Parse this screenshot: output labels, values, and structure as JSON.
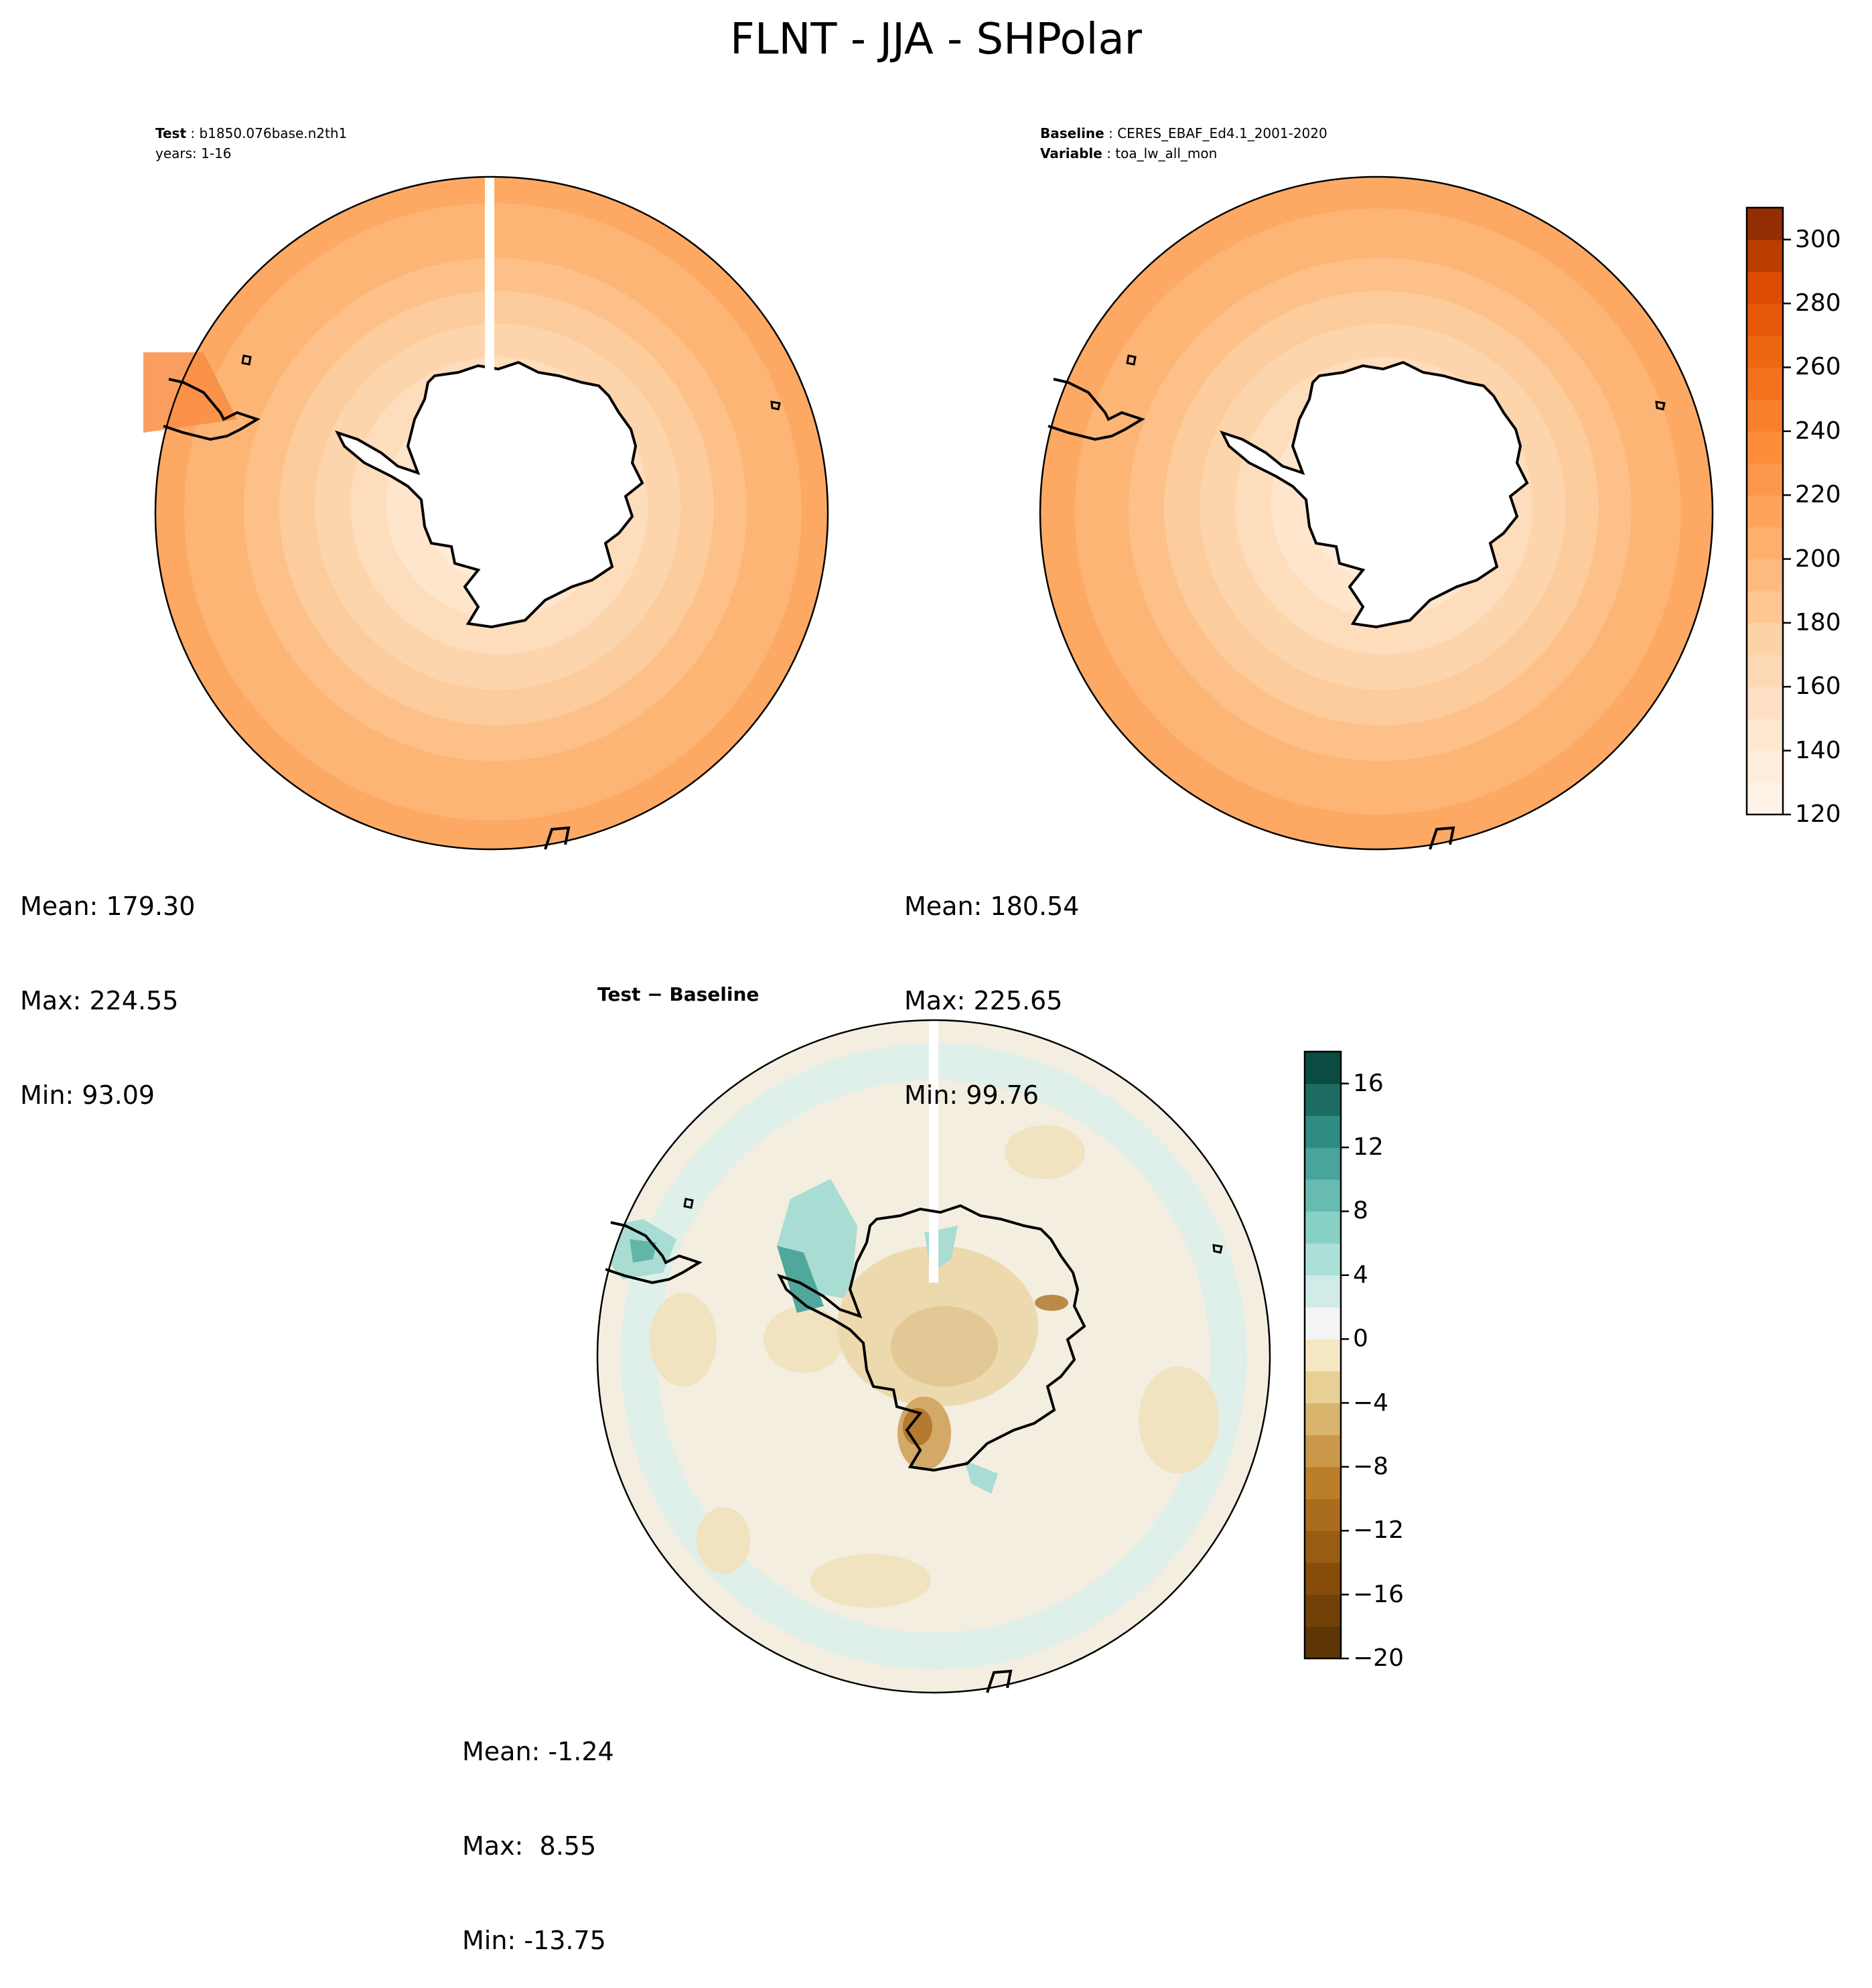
{
  "figure": {
    "title": "FLNT - JJA - SHPolar"
  },
  "panels": {
    "test": {
      "label_key": "Test",
      "label_value": "b1850.076base.n2th1",
      "years": "years: 1-16",
      "stats": {
        "mean": "Mean: 179.30",
        "max": "Max: 224.55",
        "min": "Min: 93.09"
      }
    },
    "baseline": {
      "label_key": "Baseline",
      "label_value": "CERES_EBAF_Ed4.1_2001-2020",
      "variable_key": "Variable",
      "variable_value": "toa_lw_all_mon",
      "stats": {
        "mean": "Mean: 180.54",
        "max": "Max: 225.65",
        "min": "Min: 99.76"
      }
    },
    "difference": {
      "title": "Test − Baseline",
      "stats": {
        "mean": "Mean: -1.24",
        "max": "Max:  8.55",
        "min": "Min: -13.75"
      }
    }
  },
  "colorbars": {
    "main": {
      "range": [
        120,
        310
      ],
      "step": 10,
      "ticks": [
        "120",
        "140",
        "160",
        "180",
        "200",
        "220",
        "240",
        "260",
        "280",
        "300"
      ],
      "colormap": "Oranges"
    },
    "diff": {
      "range": [
        -20,
        18
      ],
      "step": 2,
      "ticks": [
        "−20",
        "−16",
        "−12",
        "−8",
        "−4",
        "0",
        "4",
        "8",
        "12",
        "16"
      ],
      "colormap": "BrBG"
    }
  },
  "chart_data": {
    "type": "heatmap",
    "title": "FLNT - JJA - SHPolar",
    "projection": "south polar stereographic",
    "panels": [
      {
        "name": "Test",
        "radial_profile": {
          "colatitude_fraction": [
            0.0,
            0.25,
            0.5,
            0.75,
            1.0
          ],
          "value": [
            100,
            150,
            175,
            200,
            215
          ]
        },
        "mean": 179.3,
        "max": 224.55,
        "min": 93.09
      },
      {
        "name": "Baseline",
        "radial_profile": {
          "colatitude_fraction": [
            0.0,
            0.25,
            0.5,
            0.75,
            1.0
          ],
          "value": [
            105,
            150,
            176,
            201,
            216
          ]
        },
        "mean": 180.54,
        "max": 225.65,
        "min": 99.76
      },
      {
        "name": "Test − Baseline",
        "mean": -1.24,
        "max": 8.55,
        "min": -13.75
      }
    ],
    "colorbar_main": {
      "vmin": 120,
      "vmax": 310,
      "step": 10
    },
    "colorbar_diff": {
      "vmin": -20,
      "vmax": 18,
      "step": 2
    }
  }
}
